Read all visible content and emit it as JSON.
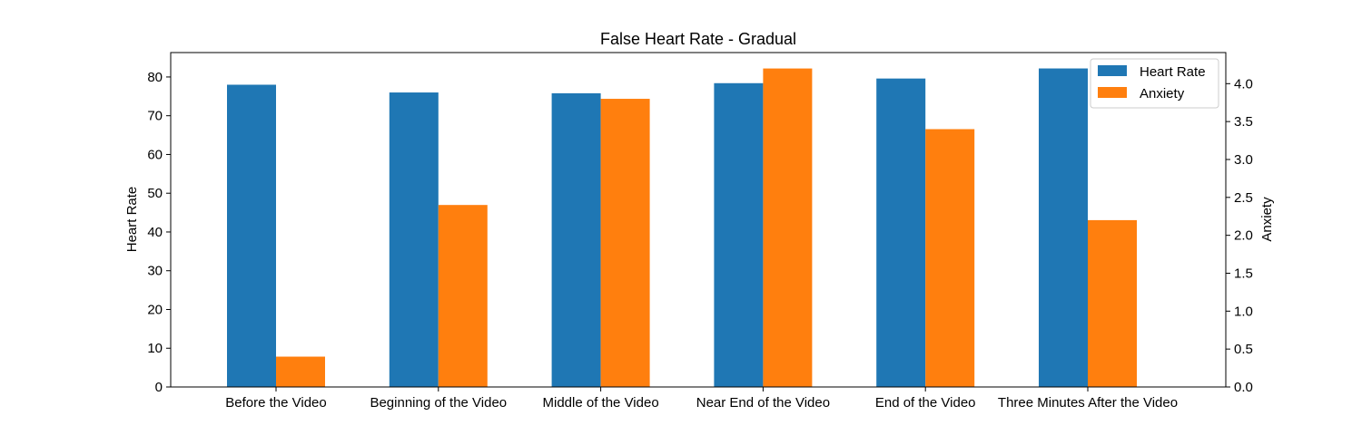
{
  "chart_data": {
    "type": "bar",
    "title": "False Heart Rate - Gradual",
    "categories": [
      "Before the Video",
      "Beginning of the Video",
      "Middle of the Video",
      "Near End of the Video",
      "End of the Video",
      "Three Minutes After the Video"
    ],
    "series": [
      {
        "name": "Heart Rate",
        "axis": "left",
        "color": "#1f77b4",
        "values": [
          78,
          76,
          75.8,
          78.4,
          79.6,
          82.2
        ]
      },
      {
        "name": "Anxiety",
        "axis": "right",
        "color": "#ff7f0e",
        "values": [
          0.4,
          2.4,
          3.8,
          4.2,
          3.4,
          2.2
        ]
      }
    ],
    "ylabel": "Heart Rate",
    "y2label": "Anxiety",
    "ylim": [
      0,
      86.3
    ],
    "y2lim": [
      0,
      4.41
    ],
    "yticks": [
      "0",
      "10",
      "20",
      "30",
      "40",
      "50",
      "60",
      "70",
      "80"
    ],
    "y2ticks": [
      "0.0",
      "0.5",
      "1.0",
      "1.5",
      "2.0",
      "2.5",
      "3.0",
      "3.5",
      "4.0"
    ],
    "grid": false,
    "legend_position": "top-right"
  }
}
